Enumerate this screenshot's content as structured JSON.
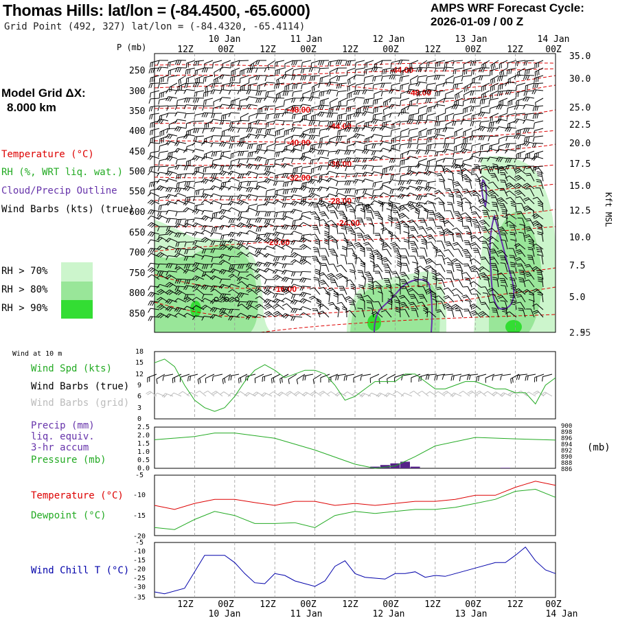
{
  "header": {
    "title": "Thomas Hills:  lat/lon = (-84.4500, -65.6000)",
    "grid_point": "Grid Point (492, 327) lat/lon = (-84.4320, -65.4114)",
    "cycle_line1": "AMPS WRF Forecast Cycle:",
    "cycle_line2": "2026-01-09 / 00  Z"
  },
  "model": {
    "grid_dx_label": "Model Grid ΔX:",
    "grid_dx_value": "8.000 km"
  },
  "legend": {
    "temperature": "Temperature (°C)",
    "rh": "RH (%, WRT liq. wat.)",
    "cloud": "Cloud/Precip Outline",
    "wind_barbs": "Wind Barbs (kts) (true)",
    "rh70": "RH > 70%",
    "rh80": "RH > 80%",
    "rh90": "RH > 90%"
  },
  "colors": {
    "temp": "#dd0000",
    "rh": "#22aa22",
    "rh70": "#ccf5cc",
    "rh80": "#99e699",
    "rh90": "#33dd33",
    "cloud": "#6633aa",
    "windchill": "#0000aa",
    "precip": "#552288"
  },
  "time_axis": {
    "top_dates": [
      "10 Jan",
      "11 Jan",
      "12 Jan",
      "13 Jan",
      "14 Jan"
    ],
    "hour_labels": [
      "12Z",
      "00Z",
      "12Z",
      "00Z",
      "12Z",
      "00Z",
      "12Z",
      "00Z",
      "12Z",
      "00Z"
    ]
  },
  "chart_data": [
    {
      "type": "heatmap",
      "title": "Time-height cross section",
      "ylabel": "P (mb)",
      "right_ylabel": "Kft MSL",
      "pressure_ticks": [
        "250",
        "300",
        "350",
        "400",
        "450",
        "500",
        "550",
        "600",
        "650",
        "700",
        "750",
        "800",
        "850"
      ],
      "kft_ticks": [
        "35.0",
        "30.0",
        "25.0",
        "22.5",
        "20.0",
        "17.5",
        "15.0",
        "12.5",
        "10.0",
        "7.5",
        "5.0",
        "2.5"
      ],
      "kft_bottom_label": "2.95",
      "temperature_contour_labels": [
        "-44.00",
        "-48.00",
        "-48.00",
        "-44.00",
        "-40.00",
        "-36.00",
        "-32.00",
        "-28.00",
        "-24.00",
        "-20.00",
        "-16.00"
      ]
    },
    {
      "type": "line",
      "title": "Wind at 10 m",
      "labels": [
        "Wind Spd (kts)",
        "Wind Barbs (true)",
        "Wind Barbs (grid)"
      ],
      "yticks": [
        "18",
        "15",
        "12",
        "9",
        "6",
        "3",
        "0"
      ],
      "ylim": [
        0,
        18
      ],
      "x": [
        0,
        3,
        6,
        9,
        12,
        15,
        18,
        21,
        24,
        27,
        30,
        33,
        36,
        39,
        42,
        45,
        48,
        51,
        54,
        57,
        60,
        63,
        66,
        69,
        72,
        75,
        78,
        81,
        84,
        87,
        90,
        93,
        96,
        99,
        102,
        105,
        108,
        111,
        114,
        117,
        120
      ],
      "series": [
        {
          "name": "Wind Spd (kts)",
          "values": [
            15,
            16,
            14,
            9,
            5,
            3,
            2,
            3,
            6,
            10,
            13,
            14.5,
            13,
            11,
            12,
            13,
            13,
            12,
            9,
            5,
            6,
            8,
            10,
            10,
            10,
            12,
            12,
            10,
            8,
            8,
            9,
            10,
            10,
            9,
            8,
            8,
            7,
            7,
            4,
            9,
            11
          ]
        }
      ]
    },
    {
      "type": "line",
      "labels": [
        "Precip (mm)",
        "liq. equiv.",
        "3-hr accum",
        "Pressure (mb)"
      ],
      "yticks_left": [
        "2.5",
        "2.0",
        "1.5",
        "1.0",
        "0.5",
        "0.0"
      ],
      "yticks_right": [
        "900",
        "898",
        "896",
        "894",
        "892",
        "890",
        "888",
        "886"
      ],
      "right_unit": "(mb)",
      "x": [
        0,
        12,
        18,
        24,
        36,
        48,
        60,
        66,
        72,
        78,
        84,
        96,
        108,
        120
      ],
      "series": [
        {
          "name": "Pressure (mb)",
          "values": [
            895.7,
            896.8,
            898.0,
            898.0,
            896.2,
            892.2,
            887.4,
            886.0,
            886.8,
            890.0,
            893.6,
            896.5,
            896.0,
            895.6
          ]
        }
      ],
      "precip_bars": [
        {
          "x": 66,
          "value": 0.1
        },
        {
          "x": 69,
          "value": 0.2
        },
        {
          "x": 72,
          "value": 0.3
        },
        {
          "x": 75,
          "value": 0.4
        },
        {
          "x": 78,
          "value": 0.1
        },
        {
          "x": 105,
          "value": 0.03
        }
      ]
    },
    {
      "type": "line",
      "labels": [
        "Temperature (°C)",
        "Dewpoint (°C)"
      ],
      "yticks": [
        "-5",
        "-10",
        "-15",
        "-20"
      ],
      "ylim": [
        -20,
        -5
      ],
      "x": [
        0,
        6,
        12,
        18,
        24,
        30,
        36,
        42,
        48,
        54,
        60,
        66,
        72,
        78,
        84,
        90,
        96,
        102,
        108,
        114,
        120
      ],
      "series": [
        {
          "name": "Temperature (°C)",
          "values": [
            -12.5,
            -13.5,
            -12,
            -11,
            -11,
            -11.8,
            -12.5,
            -11.5,
            -11.5,
            -12.5,
            -12,
            -12.5,
            -12,
            -11.5,
            -11.5,
            -11,
            -10,
            -10,
            -8,
            -6.5,
            -7.5
          ]
        },
        {
          "name": "Dewpoint (°C)",
          "values": [
            -18,
            -18.5,
            -16,
            -14,
            -15,
            -17,
            -17,
            -16.8,
            -18,
            -15,
            -14,
            -14.5,
            -14,
            -13.5,
            -13.5,
            -13,
            -12,
            -11,
            -9,
            -8.5,
            -10.5
          ]
        }
      ]
    },
    {
      "type": "line",
      "labels": [
        "Wind Chill T (°C)"
      ],
      "yticks": [
        "-5",
        "-10",
        "-15",
        "-20",
        "-25",
        "-30",
        "-35"
      ],
      "ylim": [
        -35,
        -5
      ],
      "x": [
        0,
        3,
        9,
        15,
        21,
        24,
        27,
        30,
        33,
        36,
        39,
        42,
        48,
        51,
        54,
        57,
        60,
        63,
        69,
        72,
        75,
        78,
        81,
        84,
        87,
        90,
        96,
        102,
        105,
        108,
        111,
        114,
        117,
        120
      ],
      "series": [
        {
          "name": "Wind Chill T (°C)",
          "values": [
            -32,
            -33,
            -30,
            -12,
            -12,
            -16,
            -22,
            -27,
            -27.5,
            -22,
            -23,
            -26,
            -29,
            -26,
            -18,
            -15,
            -22,
            -24,
            -25,
            -22,
            -22,
            -21,
            -24,
            -23,
            -23.5,
            -22,
            -19,
            -16,
            -16,
            -12,
            -7.5,
            -15,
            -20,
            -22
          ]
        }
      ]
    }
  ]
}
